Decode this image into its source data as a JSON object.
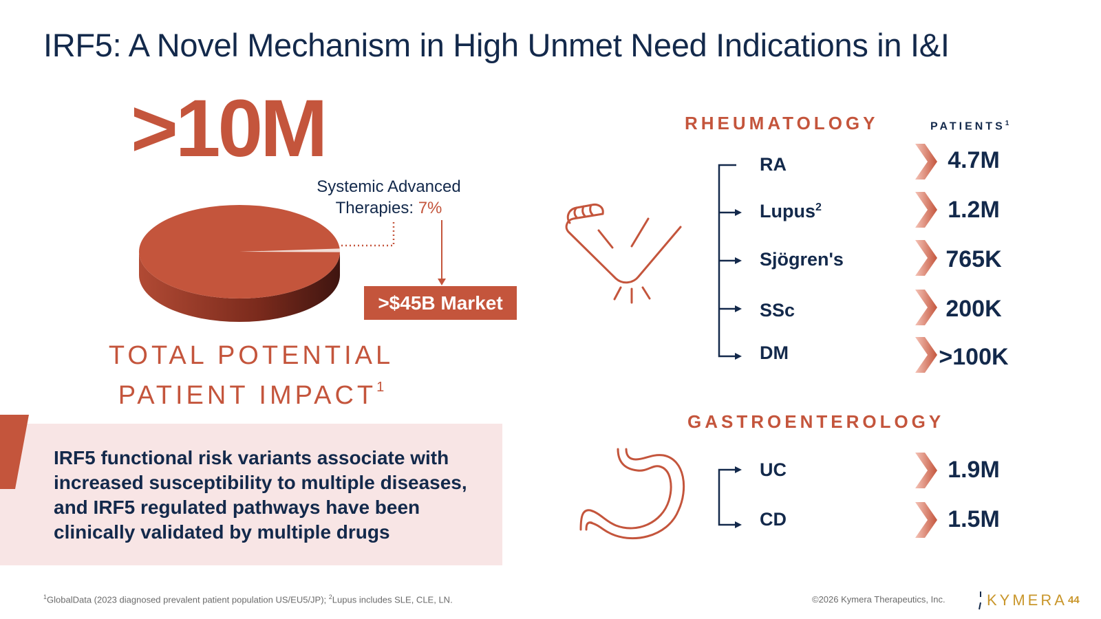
{
  "title": "IRF5: A Novel Mechanism in High Unmet Need Indications in I&I",
  "big_stat": ">10M",
  "pie": {
    "label_line1": "Systemic Advanced",
    "label_line2_prefix": "Therapies: ",
    "label_pct": "7%",
    "market": ">$45B Market",
    "impact_line1": "TOTAL POTENTIAL",
    "impact_line2": "PATIENT IMPACT",
    "impact_sup": "1",
    "slice_share": 0.07
  },
  "callout": "IRF5 functional risk variants associate with increased susceptibility to multiple diseases, and IRF5 regulated pathways have been clinically validated by multiple drugs",
  "rheumatology": {
    "heading": "RHEUMATOLOGY",
    "icon": "arm-joint-icon",
    "items": [
      {
        "label": "RA",
        "sup": "",
        "value": "4.7M"
      },
      {
        "label": "Lupus",
        "sup": "2",
        "value": "1.2M"
      },
      {
        "label": "Sjögren's",
        "sup": "",
        "value": "765K"
      },
      {
        "label": "SSc",
        "sup": "",
        "value": "200K"
      },
      {
        "label": "DM",
        "sup": "",
        "value": ">100K"
      }
    ]
  },
  "patients_heading": "PATIENTS",
  "patients_sup": "1",
  "gastroenterology": {
    "heading": "GASTROENTEROLOGY",
    "icon": "stomach-icon",
    "items": [
      {
        "label": "UC",
        "sup": "",
        "value": "1.9M"
      },
      {
        "label": "CD",
        "sup": "",
        "value": "1.5M"
      }
    ]
  },
  "footnote": {
    "sup1": "1",
    "text1": "GlobalData (2023 diagnosed prevalent patient population US/EU5/JP); ",
    "sup2": "2",
    "text2": "Lupus includes SLE, CLE, LN."
  },
  "copyright": "©2026 Kymera Therapeutics, Inc.",
  "logo": "KYMERA",
  "page_number": "44",
  "colors": {
    "accent": "#c4553c",
    "navy": "#13294b",
    "callout_bg": "#f8e5e5",
    "brand_gold": "#c9962b"
  }
}
